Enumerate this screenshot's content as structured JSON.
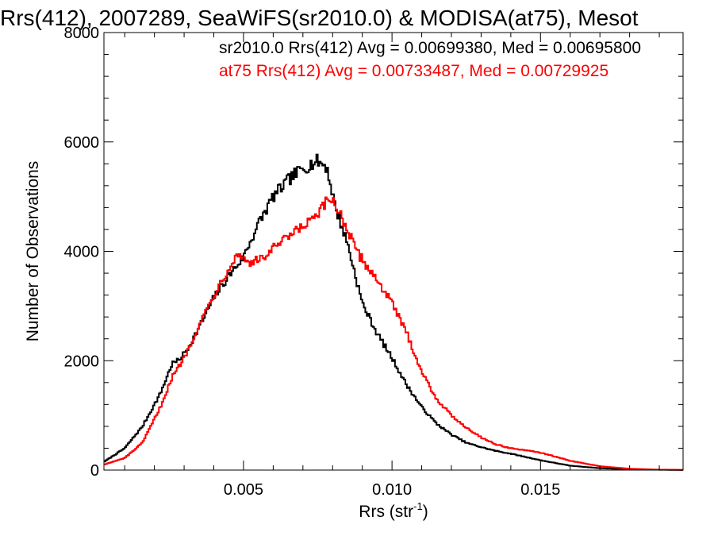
{
  "chart_data": {
    "type": "line",
    "title": "Rrs(412), 2007289, SeaWiFS(sr2010.0) & MODISA(at75), Mesot",
    "xlabel_main": "Rrs (str",
    "xlabel_sup": "-1",
    "xlabel_end": ")",
    "ylabel": "Number of Observations",
    "xlim": [
      0.0003,
      0.0198
    ],
    "ylim": [
      0,
      8000
    ],
    "x_ticks": [
      0.005,
      0.01,
      0.015
    ],
    "x_tick_labels": [
      "0.005",
      "0.010",
      "0.015"
    ],
    "y_ticks": [
      0,
      2000,
      4000,
      6000,
      8000
    ],
    "y_tick_labels": [
      "0",
      "2000",
      "4000",
      "6000",
      "8000"
    ],
    "grid": false,
    "legend_placement": "top",
    "series": [
      {
        "name": "sr2010.0 Rrs(412) Avg = 0.00699380, Med = 0.00695800",
        "color": "#000000",
        "points": [
          [
            0.0003,
            150
          ],
          [
            0.001,
            400
          ],
          [
            0.0016,
            800
          ],
          [
            0.0022,
            1400
          ],
          [
            0.0026,
            1950
          ],
          [
            0.0028,
            2000
          ],
          [
            0.0031,
            2200
          ],
          [
            0.0035,
            2600
          ],
          [
            0.004,
            3150
          ],
          [
            0.0045,
            3550
          ],
          [
            0.005,
            3900
          ],
          [
            0.0055,
            4500
          ],
          [
            0.006,
            5000
          ],
          [
            0.0066,
            5350
          ],
          [
            0.0071,
            5550
          ],
          [
            0.0075,
            5650
          ],
          [
            0.0078,
            5550
          ],
          [
            0.0081,
            4800
          ],
          [
            0.0085,
            4150
          ],
          [
            0.009,
            3050
          ],
          [
            0.0095,
            2500
          ],
          [
            0.01,
            2050
          ],
          [
            0.0105,
            1550
          ],
          [
            0.011,
            1150
          ],
          [
            0.0115,
            850
          ],
          [
            0.012,
            650
          ],
          [
            0.0125,
            500
          ],
          [
            0.013,
            420
          ],
          [
            0.0135,
            350
          ],
          [
            0.014,
            300
          ],
          [
            0.015,
            180
          ],
          [
            0.016,
            80
          ],
          [
            0.017,
            35
          ],
          [
            0.018,
            12
          ],
          [
            0.0198,
            2
          ]
        ]
      },
      {
        "name": "at75 Rrs(412) Avg = 0.00733487, Med = 0.00729925",
        "color": "#ff0000",
        "points": [
          [
            0.0003,
            100
          ],
          [
            0.001,
            220
          ],
          [
            0.0016,
            500
          ],
          [
            0.0022,
            1150
          ],
          [
            0.0026,
            1700
          ],
          [
            0.003,
            2050
          ],
          [
            0.0035,
            2650
          ],
          [
            0.004,
            3200
          ],
          [
            0.0045,
            3700
          ],
          [
            0.0048,
            3950
          ],
          [
            0.0052,
            3800
          ],
          [
            0.0056,
            3850
          ],
          [
            0.006,
            4050
          ],
          [
            0.0065,
            4250
          ],
          [
            0.007,
            4450
          ],
          [
            0.0075,
            4650
          ],
          [
            0.0078,
            4900
          ],
          [
            0.008,
            4950
          ],
          [
            0.0083,
            4650
          ],
          [
            0.0088,
            4000
          ],
          [
            0.0092,
            3700
          ],
          [
            0.0096,
            3400
          ],
          [
            0.01,
            3050
          ],
          [
            0.0105,
            2500
          ],
          [
            0.011,
            1800
          ],
          [
            0.0115,
            1300
          ],
          [
            0.012,
            1000
          ],
          [
            0.0125,
            780
          ],
          [
            0.013,
            600
          ],
          [
            0.0135,
            470
          ],
          [
            0.014,
            400
          ],
          [
            0.015,
            320
          ],
          [
            0.016,
            170
          ],
          [
            0.017,
            70
          ],
          [
            0.018,
            25
          ],
          [
            0.019,
            8
          ],
          [
            0.0198,
            3
          ]
        ]
      }
    ]
  }
}
